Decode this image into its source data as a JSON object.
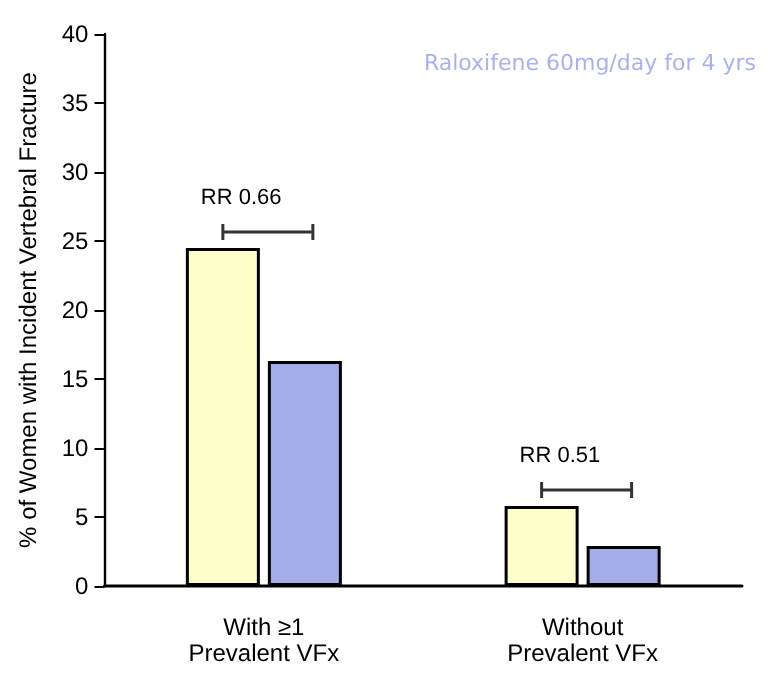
{
  "chart_data": {
    "type": "bar",
    "subtitle": "Raloxifene 60mg/day for 4 yrs",
    "ylabel": "% of Women with Incident Vertebral Fracture",
    "categories": [
      "With ≥1\nPrevalent VFx",
      "Without\nPrevalent VFx"
    ],
    "series": [
      {
        "color": "#ffffcc",
        "values": [
          24.5,
          5.8
        ]
      },
      {
        "color": "#a3ade8",
        "values": [
          16.3,
          2.9
        ]
      }
    ],
    "ylim": [
      0,
      40
    ],
    "yticks": [
      0,
      5,
      10,
      15,
      20,
      25,
      30,
      35,
      40
    ],
    "grid": false,
    "annotations": [
      "RR 0.66",
      "RR 0.51"
    ]
  }
}
